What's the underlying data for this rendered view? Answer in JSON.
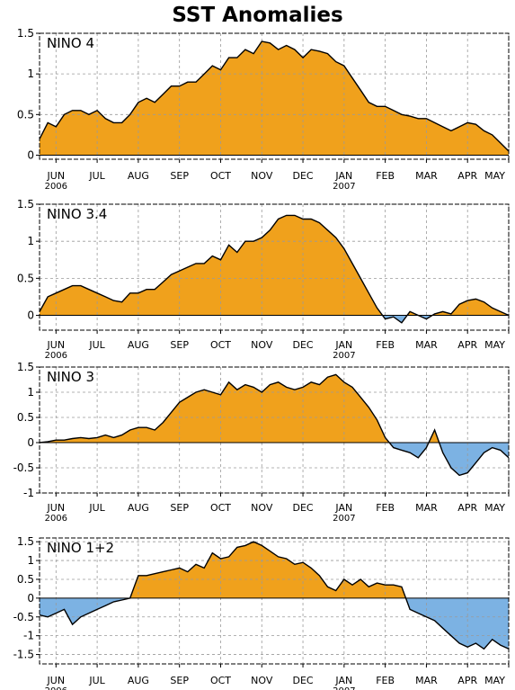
{
  "title": "SST Anomalies",
  "colors": {
    "positive": "#F0A11C",
    "negative": "#7CB2E3",
    "line": "#000000",
    "grid": "#9a9a9a"
  },
  "x_labels": [
    "JUN",
    "JUL",
    "AUG",
    "SEP",
    "OCT",
    "NOV",
    "DEC",
    "JAN",
    "FEB",
    "MAR",
    "APR",
    "MAY"
  ],
  "year_labels": [
    {
      "under": "JUN",
      "text": "2006"
    },
    {
      "under": "JAN",
      "text": "2007"
    }
  ],
  "chart_data": [
    {
      "type": "area",
      "label": "NINO 4",
      "ylim": [
        -0.05,
        1.5
      ],
      "yticks": [
        0,
        0.5,
        1,
        1.5
      ],
      "ytick_labels": [
        "0",
        "0.5",
        "1",
        "1.5"
      ],
      "grid": true,
      "x": [
        -0.4,
        -0.2,
        0,
        0.2,
        0.4,
        0.6,
        0.8,
        1,
        1.2,
        1.4,
        1.6,
        1.8,
        2,
        2.2,
        2.4,
        2.6,
        2.8,
        3,
        3.2,
        3.4,
        3.6,
        3.8,
        4,
        4.2,
        4.4,
        4.6,
        4.8,
        5,
        5.2,
        5.4,
        5.6,
        5.8,
        6,
        6.2,
        6.4,
        6.6,
        6.8,
        7,
        7.2,
        7.4,
        7.6,
        7.8,
        8,
        8.2,
        8.4,
        8.6,
        8.8,
        9,
        9.2,
        9.4,
        9.6,
        9.8,
        10,
        10.2,
        10.4,
        10.6,
        10.8,
        11
      ],
      "y": [
        0.2,
        0.4,
        0.35,
        0.5,
        0.55,
        0.55,
        0.5,
        0.55,
        0.45,
        0.4,
        0.4,
        0.5,
        0.65,
        0.7,
        0.65,
        0.75,
        0.85,
        0.85,
        0.9,
        0.9,
        1.0,
        1.1,
        1.05,
        1.2,
        1.2,
        1.3,
        1.25,
        1.4,
        1.38,
        1.3,
        1.35,
        1.3,
        1.2,
        1.3,
        1.28,
        1.25,
        1.15,
        1.1,
        0.95,
        0.8,
        0.65,
        0.6,
        0.6,
        0.55,
        0.5,
        0.48,
        0.45,
        0.45,
        0.4,
        0.35,
        0.3,
        0.35,
        0.4,
        0.38,
        0.3,
        0.25,
        0.15,
        0.05
      ]
    },
    {
      "type": "area",
      "label": "NINO 3.4",
      "ylim": [
        -0.2,
        1.5
      ],
      "yticks": [
        0,
        0.5,
        1,
        1.5
      ],
      "ytick_labels": [
        "0",
        "0.5",
        "1",
        "1.5"
      ],
      "grid": true,
      "x": [
        -0.4,
        -0.2,
        0,
        0.2,
        0.4,
        0.6,
        0.8,
        1,
        1.2,
        1.4,
        1.6,
        1.8,
        2,
        2.2,
        2.4,
        2.6,
        2.8,
        3,
        3.2,
        3.4,
        3.6,
        3.8,
        4,
        4.2,
        4.4,
        4.6,
        4.8,
        5,
        5.2,
        5.4,
        5.6,
        5.8,
        6,
        6.2,
        6.4,
        6.6,
        6.8,
        7,
        7.2,
        7.4,
        7.6,
        7.8,
        8,
        8.2,
        8.4,
        8.6,
        8.8,
        9,
        9.2,
        9.4,
        9.6,
        9.8,
        10,
        10.2,
        10.4,
        10.6,
        10.8,
        11
      ],
      "y": [
        0.05,
        0.25,
        0.3,
        0.35,
        0.4,
        0.4,
        0.35,
        0.3,
        0.25,
        0.2,
        0.18,
        0.3,
        0.3,
        0.35,
        0.35,
        0.45,
        0.55,
        0.6,
        0.65,
        0.7,
        0.7,
        0.8,
        0.75,
        0.95,
        0.85,
        1.0,
        1.0,
        1.05,
        1.15,
        1.3,
        1.35,
        1.35,
        1.3,
        1.3,
        1.25,
        1.15,
        1.05,
        0.9,
        0.7,
        0.5,
        0.3,
        0.1,
        -0.05,
        -0.02,
        -0.1,
        0.05,
        0.0,
        -0.05,
        0.02,
        0.05,
        0.02,
        0.15,
        0.2,
        0.22,
        0.18,
        0.1,
        0.05,
        0.0
      ]
    },
    {
      "type": "area",
      "label": "NINO 3",
      "ylim": [
        -1,
        1.5
      ],
      "yticks": [
        -1,
        -0.5,
        0,
        0.5,
        1,
        1.5
      ],
      "ytick_labels": [
        "-1",
        "-0.5",
        "0",
        "0.5",
        "1",
        "1.5"
      ],
      "grid": true,
      "x": [
        -0.4,
        -0.2,
        0,
        0.2,
        0.4,
        0.6,
        0.8,
        1,
        1.2,
        1.4,
        1.6,
        1.8,
        2,
        2.2,
        2.4,
        2.6,
        2.8,
        3,
        3.2,
        3.4,
        3.6,
        3.8,
        4,
        4.2,
        4.4,
        4.6,
        4.8,
        5,
        5.2,
        5.4,
        5.6,
        5.8,
        6,
        6.2,
        6.4,
        6.6,
        6.8,
        7,
        7.2,
        7.4,
        7.6,
        7.8,
        8,
        8.2,
        8.4,
        8.6,
        8.8,
        9,
        9.2,
        9.4,
        9.6,
        9.8,
        10,
        10.2,
        10.4,
        10.6,
        10.8,
        11
      ],
      "y": [
        0.0,
        0.02,
        0.05,
        0.05,
        0.08,
        0.1,
        0.08,
        0.1,
        0.15,
        0.1,
        0.15,
        0.25,
        0.3,
        0.3,
        0.25,
        0.4,
        0.6,
        0.8,
        0.9,
        1.0,
        1.05,
        1.0,
        0.95,
        1.2,
        1.05,
        1.15,
        1.1,
        1.0,
        1.15,
        1.2,
        1.1,
        1.05,
        1.1,
        1.2,
        1.15,
        1.3,
        1.35,
        1.2,
        1.1,
        0.9,
        0.7,
        0.45,
        0.1,
        -0.1,
        -0.15,
        -0.2,
        -0.3,
        -0.1,
        0.25,
        -0.2,
        -0.5,
        -0.65,
        -0.6,
        -0.4,
        -0.2,
        -0.1,
        -0.15,
        -0.3
      ]
    },
    {
      "type": "area",
      "label": "NINO 1+2",
      "ylim": [
        -1.75,
        1.6
      ],
      "yticks": [
        -1.5,
        -1,
        -0.5,
        0,
        0.5,
        1,
        1.5
      ],
      "ytick_labels": [
        "-1.5",
        "-1",
        "-0.5",
        "0",
        "0.5",
        "1",
        "1.5"
      ],
      "grid": true,
      "x": [
        -0.4,
        -0.2,
        0,
        0.2,
        0.4,
        0.6,
        0.8,
        1,
        1.2,
        1.4,
        1.6,
        1.8,
        2,
        2.2,
        2.4,
        2.6,
        2.8,
        3,
        3.2,
        3.4,
        3.6,
        3.8,
        4,
        4.2,
        4.4,
        4.6,
        4.8,
        5,
        5.2,
        5.4,
        5.6,
        5.8,
        6,
        6.2,
        6.4,
        6.6,
        6.8,
        7,
        7.2,
        7.4,
        7.6,
        7.8,
        8,
        8.2,
        8.4,
        8.6,
        8.8,
        9,
        9.2,
        9.4,
        9.6,
        9.8,
        10,
        10.2,
        10.4,
        10.6,
        10.8,
        11
      ],
      "y": [
        -0.45,
        -0.5,
        -0.4,
        -0.3,
        -0.7,
        -0.5,
        -0.4,
        -0.3,
        -0.2,
        -0.1,
        -0.05,
        0.0,
        0.6,
        0.6,
        0.65,
        0.7,
        0.75,
        0.8,
        0.7,
        0.9,
        0.8,
        1.2,
        1.05,
        1.1,
        1.35,
        1.4,
        1.5,
        1.4,
        1.25,
        1.1,
        1.05,
        0.9,
        0.95,
        0.8,
        0.6,
        0.3,
        0.2,
        0.5,
        0.35,
        0.5,
        0.3,
        0.4,
        0.35,
        0.35,
        0.3,
        -0.3,
        -0.4,
        -0.5,
        -0.6,
        -0.8,
        -1.0,
        -1.2,
        -1.3,
        -1.2,
        -1.35,
        -1.1,
        -1.25,
        -1.35
      ]
    }
  ]
}
